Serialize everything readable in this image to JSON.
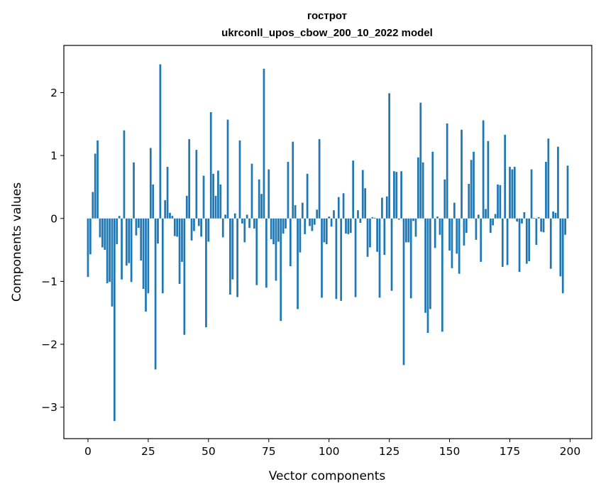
{
  "chart_data": {
    "type": "bar",
    "title_lines": [
      "гострот",
      "ukrconll_upos_cbow_200_10_2022 model"
    ],
    "xlabel": "Vector components",
    "ylabel": "Components values",
    "xlim": [
      -10,
      209
    ],
    "ylim": [
      -3.5,
      2.75
    ],
    "x_ticks": [
      0,
      25,
      50,
      75,
      100,
      125,
      150,
      175,
      200
    ],
    "y_ticks": [
      -3,
      -2,
      -1,
      0,
      1,
      2
    ],
    "y_tick_labels": [
      "−3",
      "−2",
      "−1",
      "0",
      "1",
      "2"
    ],
    "bar_color": "#1f77b4",
    "grid": false,
    "x": [
      0,
      1,
      2,
      3,
      4,
      5,
      6,
      7,
      8,
      9,
      10,
      11,
      12,
      13,
      14,
      15,
      16,
      17,
      18,
      19,
      20,
      21,
      22,
      23,
      24,
      25,
      26,
      27,
      28,
      29,
      30,
      31,
      32,
      33,
      34,
      35,
      36,
      37,
      38,
      39,
      40,
      41,
      42,
      43,
      44,
      45,
      46,
      47,
      48,
      49,
      50,
      51,
      52,
      53,
      54,
      55,
      56,
      57,
      58,
      59,
      60,
      61,
      62,
      63,
      64,
      65,
      66,
      67,
      68,
      69,
      70,
      71,
      72,
      73,
      74,
      75,
      76,
      77,
      78,
      79,
      80,
      81,
      82,
      83,
      84,
      85,
      86,
      87,
      88,
      89,
      90,
      91,
      92,
      93,
      94,
      95,
      96,
      97,
      98,
      99,
      100,
      101,
      102,
      103,
      104,
      105,
      106,
      107,
      108,
      109,
      110,
      111,
      112,
      113,
      114,
      115,
      116,
      117,
      118,
      119,
      120,
      121,
      122,
      123,
      124,
      125,
      126,
      127,
      128,
      129,
      130,
      131,
      132,
      133,
      134,
      135,
      136,
      137,
      138,
      139,
      140,
      141,
      142,
      143,
      144,
      145,
      146,
      147,
      148,
      149,
      150,
      151,
      152,
      153,
      154,
      155,
      156,
      157,
      158,
      159,
      160,
      161,
      162,
      163,
      164,
      165,
      166,
      167,
      168,
      169,
      170,
      171,
      172,
      173,
      174,
      175,
      176,
      177,
      178,
      179,
      180,
      181,
      182,
      183,
      184,
      185,
      186,
      187,
      188,
      189,
      190,
      191,
      192,
      193,
      194,
      195,
      196,
      197,
      198,
      199
    ],
    "values": [
      -0.93,
      -0.57,
      0.42,
      1.03,
      1.24,
      -0.3,
      -0.46,
      -0.5,
      -1.03,
      -1.01,
      -1.4,
      -3.22,
      -0.41,
      0.04,
      -0.97,
      1.4,
      -0.75,
      -0.71,
      -1.01,
      0.89,
      -0.27,
      -0.15,
      -0.67,
      -1.12,
      -1.48,
      -1.19,
      1.12,
      0.54,
      -2.4,
      -0.4,
      2.45,
      -1.19,
      0.29,
      0.82,
      0.09,
      0.04,
      -0.28,
      -0.29,
      -1.04,
      -0.69,
      -1.85,
      0.36,
      1.26,
      -0.35,
      -0.2,
      1.09,
      -0.12,
      -0.29,
      0.68,
      -1.73,
      -0.37,
      1.69,
      0.71,
      0.36,
      0.76,
      0.54,
      -0.3,
      0.06,
      1.57,
      -1.21,
      -0.97,
      0.08,
      -1.25,
      1.24,
      -0.08,
      -0.38,
      0.06,
      -0.15,
      0.87,
      -0.16,
      -1.06,
      0.62,
      0.39,
      2.38,
      -1.1,
      0.78,
      -0.33,
      -0.41,
      -0.99,
      -0.37,
      -1.63,
      -0.24,
      -0.16,
      0.9,
      -0.76,
      1.22,
      0.21,
      -1.44,
      -0.54,
      0.25,
      -0.25,
      0.71,
      -0.12,
      -0.2,
      -0.1,
      0.14,
      1.26,
      -1.26,
      -0.38,
      -0.41,
      0.03,
      -0.13,
      0.13,
      -1.28,
      0.34,
      -1.31,
      0.4,
      -0.24,
      -0.25,
      -0.23,
      0.92,
      -1.25,
      0.13,
      -0.07,
      0.77,
      0.48,
      -0.61,
      -0.46,
      0.02,
      0.01,
      -0.53,
      -1.26,
      0.33,
      -0.58,
      0.35,
      1.99,
      -1.15,
      0.75,
      0.74,
      -0.02,
      0.75,
      -2.33,
      -0.38,
      -0.38,
      -1.27,
      -0.04,
      -0.29,
      0.97,
      1.84,
      0.89,
      -1.5,
      -1.82,
      -1.44,
      1.06,
      -0.47,
      0.03,
      -0.26,
      -1.8,
      0.62,
      1.51,
      -0.51,
      -0.79,
      0.25,
      -0.56,
      -0.88,
      1.41,
      -0.43,
      -0.23,
      0.55,
      0.93,
      1.06,
      -0.34,
      0.06,
      -0.69,
      1.56,
      0.15,
      1.23,
      -0.23,
      -0.11,
      0.07,
      0.54,
      0.53,
      -0.77,
      1.33,
      -0.74,
      0.82,
      0.78,
      0.82,
      -0.05,
      -0.85,
      -0.08,
      0.1,
      -0.72,
      -0.68,
      0.78,
      0.01,
      -0.42,
      0.02,
      -0.21,
      -0.22,
      0.9,
      1.27,
      -0.8,
      0.11,
      0.09,
      1.14,
      -0.92,
      -1.19,
      -0.26,
      0.84
    ]
  }
}
